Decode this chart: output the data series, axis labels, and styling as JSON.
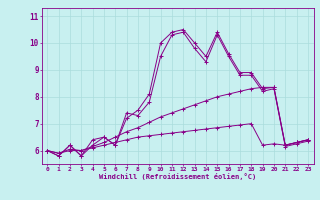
{
  "bg_color": "#c8f0f0",
  "grid_color": "#aadddd",
  "line_color": "#880088",
  "xlim": [
    -0.5,
    23.5
  ],
  "ylim": [
    5.5,
    11.3
  ],
  "yticks": [
    6,
    7,
    8,
    9,
    10,
    11
  ],
  "xticks": [
    0,
    1,
    2,
    3,
    4,
    5,
    6,
    7,
    8,
    9,
    10,
    11,
    12,
    13,
    14,
    15,
    16,
    17,
    18,
    19,
    20,
    21,
    22,
    23
  ],
  "xlabel": "Windchill (Refroidissement éolien,°C)",
  "lines": [
    [
      6.0,
      5.8,
      6.2,
      5.8,
      6.2,
      6.5,
      6.2,
      7.2,
      7.5,
      8.1,
      10.0,
      10.4,
      10.5,
      10.0,
      9.5,
      10.4,
      9.6,
      8.9,
      8.9,
      8.3,
      8.35,
      6.2,
      6.3,
      6.4
    ],
    [
      6.0,
      5.8,
      6.2,
      5.8,
      6.4,
      6.5,
      6.2,
      7.4,
      7.3,
      7.8,
      9.5,
      10.3,
      10.4,
      9.8,
      9.3,
      10.3,
      9.5,
      8.8,
      8.8,
      8.2,
      8.3,
      6.15,
      6.25,
      6.35
    ],
    [
      6.0,
      5.9,
      6.05,
      6.0,
      6.15,
      6.3,
      6.5,
      6.7,
      6.85,
      7.05,
      7.25,
      7.4,
      7.55,
      7.7,
      7.85,
      8.0,
      8.1,
      8.2,
      8.3,
      8.35,
      8.35,
      6.2,
      6.3,
      6.4
    ],
    [
      6.0,
      5.9,
      6.0,
      6.0,
      6.1,
      6.2,
      6.3,
      6.4,
      6.5,
      6.55,
      6.6,
      6.65,
      6.7,
      6.75,
      6.8,
      6.85,
      6.9,
      6.95,
      7.0,
      6.2,
      6.25,
      6.2,
      6.3,
      6.4
    ]
  ]
}
